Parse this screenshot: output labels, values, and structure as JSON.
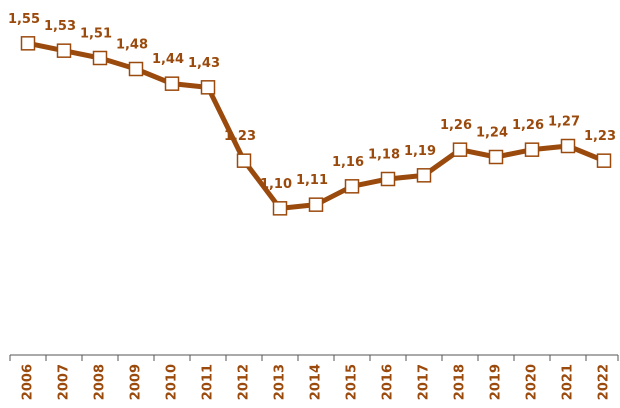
{
  "chart_data": {
    "type": "line",
    "categories": [
      "2006",
      "2007",
      "2008",
      "2009",
      "2010",
      "2011",
      "2012",
      "2013",
      "2014",
      "2015",
      "2016",
      "2017",
      "2018",
      "2019",
      "2020",
      "2021",
      "2022"
    ],
    "series": [
      {
        "name": null,
        "color": "#9a4a0c",
        "values": [
          1.55,
          1.53,
          1.51,
          1.48,
          1.44,
          1.43,
          1.23,
          1.1,
          1.11,
          1.16,
          1.18,
          1.19,
          1.26,
          1.24,
          1.26,
          1.27,
          1.23
        ],
        "value_labels": [
          "1,55",
          "1,53",
          "1,51",
          "1,48",
          "1,44",
          "1,43",
          "1,23",
          "1,10",
          "1,11",
          "1,16",
          "1,18",
          "1,19",
          "1,26",
          "1,24",
          "1,26",
          "1,27",
          "1,23"
        ]
      }
    ],
    "ylim": [
      0.7,
      1.6
    ]
  }
}
